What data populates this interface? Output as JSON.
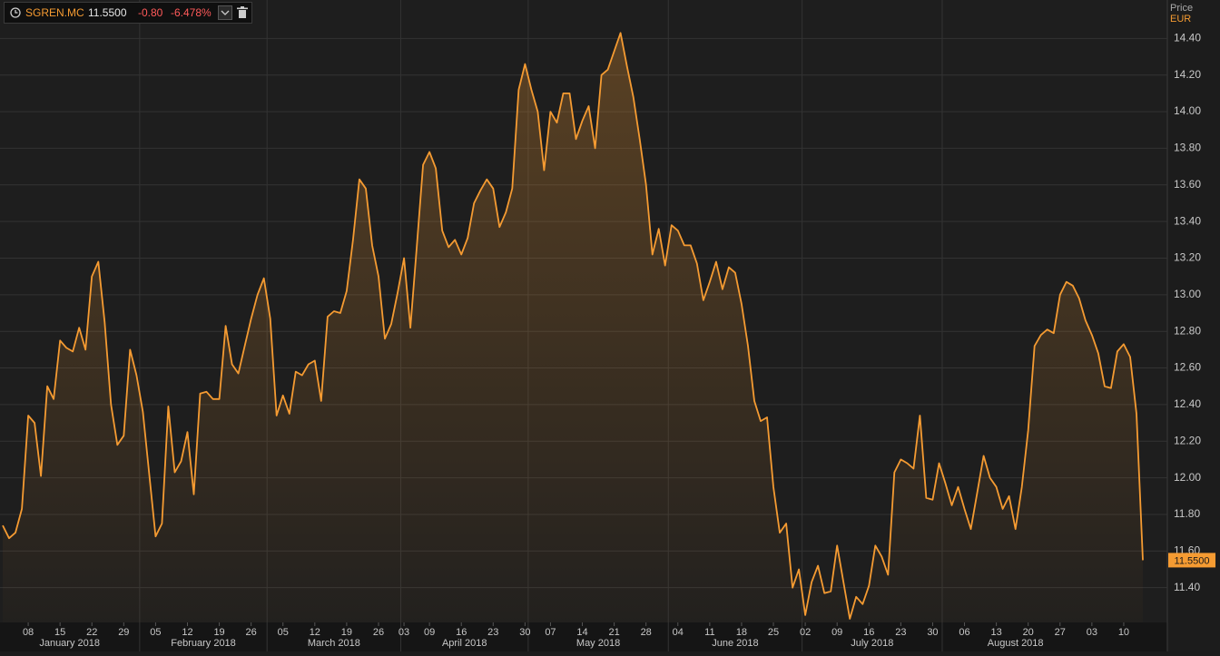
{
  "header": {
    "symbol": "SGREN.MC",
    "price": "11.5500",
    "change": "-0.80",
    "change_pct": "-6.478%"
  },
  "chart_data": {
    "type": "line",
    "y_axis_title": "Price",
    "y_axis_unit": "EUR",
    "x": [
      "2018-01-02",
      "2018-01-03",
      "2018-01-04",
      "2018-01-05",
      "2018-01-08",
      "2018-01-09",
      "2018-01-10",
      "2018-01-11",
      "2018-01-12",
      "2018-01-15",
      "2018-01-16",
      "2018-01-17",
      "2018-01-18",
      "2018-01-19",
      "2018-01-22",
      "2018-01-23",
      "2018-01-24",
      "2018-01-25",
      "2018-01-26",
      "2018-01-29",
      "2018-01-30",
      "2018-01-31",
      "2018-02-01",
      "2018-02-02",
      "2018-02-05",
      "2018-02-06",
      "2018-02-07",
      "2018-02-08",
      "2018-02-09",
      "2018-02-12",
      "2018-02-13",
      "2018-02-14",
      "2018-02-15",
      "2018-02-16",
      "2018-02-19",
      "2018-02-20",
      "2018-02-21",
      "2018-02-22",
      "2018-02-23",
      "2018-02-26",
      "2018-02-27",
      "2018-02-28",
      "2018-03-01",
      "2018-03-02",
      "2018-03-05",
      "2018-03-06",
      "2018-03-07",
      "2018-03-08",
      "2018-03-09",
      "2018-03-12",
      "2018-03-13",
      "2018-03-14",
      "2018-03-15",
      "2018-03-16",
      "2018-03-19",
      "2018-03-20",
      "2018-03-21",
      "2018-03-22",
      "2018-03-23",
      "2018-03-26",
      "2018-03-27",
      "2018-03-28",
      "2018-03-29",
      "2018-04-03",
      "2018-04-04",
      "2018-04-05",
      "2018-04-06",
      "2018-04-09",
      "2018-04-10",
      "2018-04-11",
      "2018-04-12",
      "2018-04-13",
      "2018-04-16",
      "2018-04-17",
      "2018-04-18",
      "2018-04-19",
      "2018-04-20",
      "2018-04-23",
      "2018-04-24",
      "2018-04-25",
      "2018-04-26",
      "2018-04-27",
      "2018-04-30",
      "2018-05-02",
      "2018-05-03",
      "2018-05-04",
      "2018-05-07",
      "2018-05-08",
      "2018-05-09",
      "2018-05-10",
      "2018-05-11",
      "2018-05-14",
      "2018-05-15",
      "2018-05-16",
      "2018-05-17",
      "2018-05-18",
      "2018-05-21",
      "2018-05-22",
      "2018-05-23",
      "2018-05-24",
      "2018-05-25",
      "2018-05-28",
      "2018-05-29",
      "2018-05-30",
      "2018-05-31",
      "2018-06-01",
      "2018-06-04",
      "2018-06-05",
      "2018-06-06",
      "2018-06-07",
      "2018-06-08",
      "2018-06-11",
      "2018-06-12",
      "2018-06-13",
      "2018-06-14",
      "2018-06-15",
      "2018-06-18",
      "2018-06-19",
      "2018-06-20",
      "2018-06-21",
      "2018-06-22",
      "2018-06-25",
      "2018-06-26",
      "2018-06-27",
      "2018-06-28",
      "2018-06-29",
      "2018-07-02",
      "2018-07-03",
      "2018-07-04",
      "2018-07-05",
      "2018-07-06",
      "2018-07-09",
      "2018-07-10",
      "2018-07-11",
      "2018-07-12",
      "2018-07-13",
      "2018-07-16",
      "2018-07-17",
      "2018-07-18",
      "2018-07-19",
      "2018-07-20",
      "2018-07-23",
      "2018-07-24",
      "2018-07-25",
      "2018-07-26",
      "2018-07-27",
      "2018-07-30",
      "2018-07-31",
      "2018-08-01",
      "2018-08-02",
      "2018-08-03",
      "2018-08-06",
      "2018-08-07",
      "2018-08-08",
      "2018-08-09",
      "2018-08-10",
      "2018-08-13",
      "2018-08-14",
      "2018-08-15",
      "2018-08-16",
      "2018-08-17",
      "2018-08-20",
      "2018-08-21",
      "2018-08-22",
      "2018-08-23",
      "2018-08-24",
      "2018-08-27",
      "2018-08-28",
      "2018-08-29",
      "2018-08-30",
      "2018-08-31",
      "2018-09-03",
      "2018-09-04",
      "2018-09-05",
      "2018-09-06",
      "2018-09-07",
      "2018-09-10",
      "2018-09-11",
      "2018-09-12",
      "2018-09-13"
    ],
    "series": [
      {
        "name": "SGREN.MC",
        "color": "#f59b32",
        "values": [
          11.74,
          11.67,
          11.7,
          11.83,
          12.34,
          12.3,
          12.01,
          12.5,
          12.43,
          12.75,
          12.71,
          12.69,
          12.82,
          12.7,
          13.1,
          13.18,
          12.85,
          12.4,
          12.18,
          12.23,
          12.7,
          12.56,
          12.36,
          12.02,
          11.68,
          11.75,
          12.39,
          12.03,
          12.09,
          12.25,
          11.91,
          12.46,
          12.47,
          12.43,
          12.43,
          12.83,
          12.62,
          12.57,
          12.72,
          12.87,
          13.0,
          13.09,
          12.87,
          12.34,
          12.45,
          12.35,
          12.58,
          12.56,
          12.62,
          12.64,
          12.42,
          12.88,
          12.91,
          12.9,
          13.02,
          13.3,
          13.63,
          13.58,
          13.27,
          13.1,
          12.76,
          12.84,
          13.01,
          13.2,
          12.82,
          13.26,
          13.71,
          13.78,
          13.69,
          13.35,
          13.26,
          13.3,
          13.22,
          13.31,
          13.5,
          13.57,
          13.63,
          13.58,
          13.37,
          13.45,
          13.58,
          14.12,
          14.26,
          14.12,
          14.0,
          13.68,
          14.0,
          13.94,
          14.1,
          14.1,
          13.85,
          13.95,
          14.03,
          13.8,
          14.2,
          14.23,
          14.33,
          14.43,
          14.25,
          14.08,
          13.85,
          13.6,
          13.22,
          13.36,
          13.16,
          13.38,
          13.35,
          13.27,
          13.27,
          13.17,
          12.97,
          13.07,
          13.18,
          13.03,
          13.15,
          13.12,
          12.95,
          12.72,
          12.42,
          12.31,
          12.33,
          11.95,
          11.7,
          11.75,
          11.4,
          11.5,
          11.25,
          11.43,
          11.52,
          11.37,
          11.38,
          11.63,
          11.43,
          11.23,
          11.35,
          11.31,
          11.41,
          11.63,
          11.57,
          11.47,
          12.03,
          12.1,
          12.08,
          12.05,
          12.34,
          11.89,
          11.88,
          12.08,
          11.97,
          11.85,
          11.95,
          11.83,
          11.72,
          11.92,
          12.12,
          12.0,
          11.95,
          11.83,
          11.9,
          11.72,
          11.95,
          12.26,
          12.72,
          12.78,
          12.81,
          12.79,
          13.0,
          13.07,
          13.05,
          12.98,
          12.86,
          12.78,
          12.68,
          12.5,
          12.49,
          12.69,
          12.73,
          12.66,
          12.35,
          11.55
        ],
        "value_labels": {
          "179": "11.5500"
        }
      }
    ],
    "ylim": [
      11.21,
      14.61
    ],
    "yticks": [
      {
        "value": 11.4,
        "label": "11.40"
      },
      {
        "value": 11.6,
        "label": "11.60"
      },
      {
        "value": 11.8,
        "label": "11.80"
      },
      {
        "value": 12,
        "label": "12.00"
      },
      {
        "value": 12.2,
        "label": "12.20"
      },
      {
        "value": 12.4,
        "label": "12.40"
      },
      {
        "value": 12.6,
        "label": "12.60"
      },
      {
        "value": 12.8,
        "label": "12.80"
      },
      {
        "value": 13,
        "label": "13.00"
      },
      {
        "value": 13.2,
        "label": "13.20"
      },
      {
        "value": 13.4,
        "label": "13.40"
      },
      {
        "value": 13.6,
        "label": "13.60"
      },
      {
        "value": 13.8,
        "label": "13.80"
      },
      {
        "value": 14,
        "label": "14.00"
      },
      {
        "value": 14.2,
        "label": "14.20"
      },
      {
        "value": 14.4,
        "label": "14.40"
      }
    ],
    "xticks": [
      {
        "value": "2018-01-08",
        "label": "08"
      },
      {
        "value": "2018-01-15",
        "label": "15"
      },
      {
        "value": "2018-01-22",
        "label": "22"
      },
      {
        "value": "2018-01-29",
        "label": "29"
      },
      {
        "value": "2018-02-05",
        "label": "05"
      },
      {
        "value": "2018-02-12",
        "label": "12"
      },
      {
        "value": "2018-02-19",
        "label": "19"
      },
      {
        "value": "2018-02-26",
        "label": "26"
      },
      {
        "value": "2018-03-05",
        "label": "05"
      },
      {
        "value": "2018-03-12",
        "label": "12"
      },
      {
        "value": "2018-03-19",
        "label": "19"
      },
      {
        "value": "2018-03-26",
        "label": "26"
      },
      {
        "value": "2018-04-03",
        "label": "03"
      },
      {
        "value": "2018-04-09",
        "label": "09"
      },
      {
        "value": "2018-04-16",
        "label": "16"
      },
      {
        "value": "2018-04-23",
        "label": "23"
      },
      {
        "value": "2018-04-30",
        "label": "30"
      },
      {
        "value": "2018-05-07",
        "label": "07"
      },
      {
        "value": "2018-05-14",
        "label": "14"
      },
      {
        "value": "2018-05-21",
        "label": "21"
      },
      {
        "value": "2018-05-28",
        "label": "28"
      },
      {
        "value": "2018-06-04",
        "label": "04"
      },
      {
        "value": "2018-06-11",
        "label": "11"
      },
      {
        "value": "2018-06-18",
        "label": "18"
      },
      {
        "value": "2018-06-25",
        "label": "25"
      },
      {
        "value": "2018-07-02",
        "label": "02"
      },
      {
        "value": "2018-07-09",
        "label": "09"
      },
      {
        "value": "2018-07-16",
        "label": "16"
      },
      {
        "value": "2018-07-23",
        "label": "23"
      },
      {
        "value": "2018-07-30",
        "label": "30"
      },
      {
        "value": "2018-08-06",
        "label": "06"
      },
      {
        "value": "2018-08-13",
        "label": "13"
      },
      {
        "value": "2018-08-20",
        "label": "20"
      },
      {
        "value": "2018-08-27",
        "label": "27"
      },
      {
        "value": "2018-09-03",
        "label": "03"
      },
      {
        "value": "2018-09-10",
        "label": "10"
      }
    ],
    "month_labels": [
      {
        "value": "2018-01",
        "label": "January 2018"
      },
      {
        "value": "2018-02",
        "label": "February 2018"
      },
      {
        "value": "2018-03",
        "label": "March 2018"
      },
      {
        "value": "2018-04",
        "label": "April 2018"
      },
      {
        "value": "2018-05",
        "label": "May 2018"
      },
      {
        "value": "2018-06",
        "label": "June 2018"
      },
      {
        "value": "2018-07",
        "label": "July 2018"
      },
      {
        "value": "2018-08",
        "label": "August 2018"
      }
    ],
    "grid": true
  }
}
